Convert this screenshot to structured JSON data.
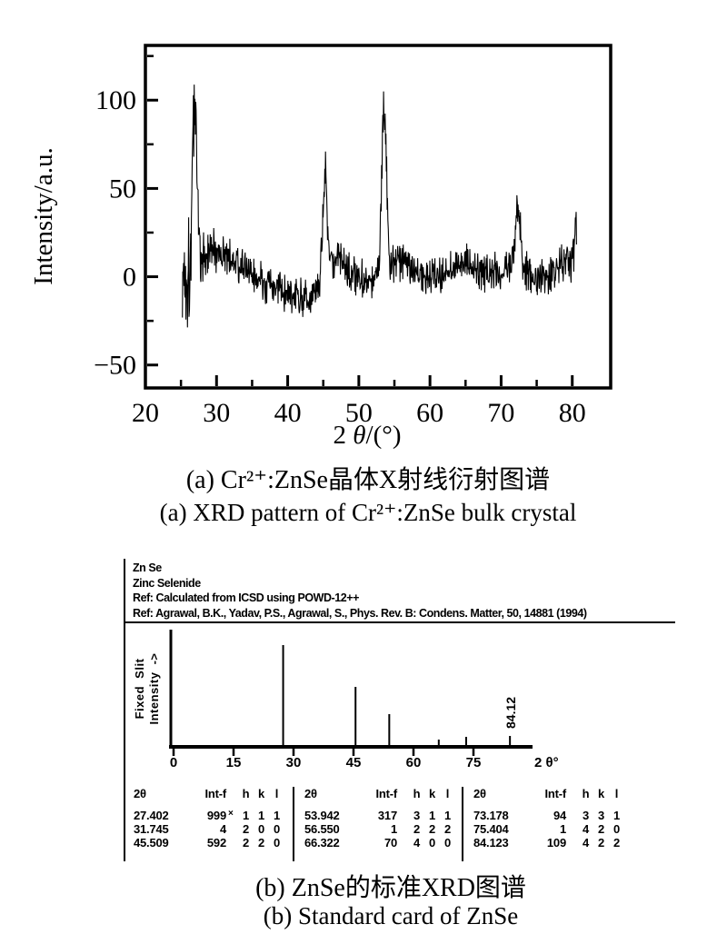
{
  "figure": {
    "captions": {
      "a_zh": "(a) Cr²⁺:ZnSe晶体X射线衍射图谱",
      "a_en": "(a) XRD pattern of Cr²⁺:ZnSe bulk crystal",
      "b_zh": "(b) ZnSe的标准XRD图谱",
      "b_en": "(b) Standard card of ZnSe"
    }
  },
  "chart_data": [
    {
      "id": "xrd-pattern-a",
      "type": "line",
      "title": "",
      "xlabel": "2θ/(°)",
      "ylabel": "Intensity/a.u.",
      "xlim": [
        20,
        85.4
      ],
      "ylim": [
        -63,
        131
      ],
      "xticks": [
        20,
        30,
        40,
        50,
        60,
        70,
        80
      ],
      "xticks_minor": [
        25,
        35,
        45,
        55,
        65,
        75
      ],
      "yticks": [
        -50,
        0,
        50,
        100
      ],
      "yticks_minor": [
        -25,
        25,
        75,
        125
      ],
      "grid": false,
      "x_data_range": [
        25.2,
        80.6
      ],
      "seed": 1337,
      "noise": {
        "base": 13,
        "start_boost": 24,
        "start_center": 25.4,
        "start_width": 2.0
      },
      "peaks": [
        {
          "center": 26.95,
          "height": 102,
          "width": 0.32
        },
        {
          "center": 45.25,
          "height": 62,
          "width": 0.3
        },
        {
          "center": 53.55,
          "height": 108,
          "width": 0.32
        },
        {
          "center": 72.35,
          "height": 42,
          "width": 0.28
        },
        {
          "center": 80.5,
          "height": 28,
          "width": 0.18
        }
      ],
      "humps": [
        {
          "center": 29.5,
          "height": 14,
          "width": 2.2
        },
        {
          "center": 33.0,
          "height": 8,
          "width": 3.0
        },
        {
          "center": 36.0,
          "height": -6,
          "width": 8.0
        },
        {
          "center": 41.5,
          "height": -7,
          "width": 2.5
        },
        {
          "center": 46.8,
          "height": 12,
          "width": 1.6
        },
        {
          "center": 55.8,
          "height": 9,
          "width": 1.8
        },
        {
          "center": 64.5,
          "height": 7,
          "width": 2.0
        },
        {
          "center": 71.5,
          "height": 8,
          "width": 1.5
        },
        {
          "center": 79.3,
          "height": 9,
          "width": 1.2
        }
      ]
    },
    {
      "id": "standard-card-sticks-b",
      "type": "stick",
      "xlabel": "2 θ°",
      "ylabel_lines": [
        "Fixed  Slit",
        "Intensity  ->"
      ],
      "xlim": [
        0,
        90
      ],
      "xticks": [
        0,
        15,
        30,
        45,
        60,
        75
      ],
      "max_intensity": 999,
      "sticks": [
        {
          "two_theta": 27.402,
          "intensity": 999
        },
        {
          "two_theta": 31.745,
          "intensity": 4
        },
        {
          "two_theta": 45.509,
          "intensity": 592
        },
        {
          "two_theta": 53.942,
          "intensity": 317
        },
        {
          "two_theta": 56.55,
          "intensity": 1
        },
        {
          "two_theta": 66.322,
          "intensity": 70
        },
        {
          "two_theta": 73.178,
          "intensity": 94
        },
        {
          "two_theta": 75.404,
          "intensity": 1
        },
        {
          "two_theta": 84.123,
          "intensity": 109
        }
      ],
      "annotation": {
        "text": "84.12",
        "two_theta": 84.123
      }
    }
  ],
  "card": {
    "header_lines": [
      "Zn Se",
      "Zinc Selenide",
      "Ref:  Calculated from ICSD using POWD-12++",
      "Ref: Agrawal, B.K., Yadav, P.S., Agrawal, S., Phys. Rev. B: Condens. Matter, 50, 14881 (1994)"
    ],
    "table": {
      "headers": [
        "2θ",
        "Int-f",
        "h",
        "k",
        "l"
      ],
      "groups": [
        {
          "rows": [
            {
              "two_theta": "27.402",
              "int_f": "999",
              "marker": "×",
              "h": "1",
              "k": "1",
              "l": "1"
            },
            {
              "two_theta": "31.745",
              "int_f": "4",
              "marker": "",
              "h": "2",
              "k": "0",
              "l": "0"
            },
            {
              "two_theta": "45.509",
              "int_f": "592",
              "marker": "",
              "h": "2",
              "k": "2",
              "l": "0"
            }
          ]
        },
        {
          "rows": [
            {
              "two_theta": "53.942",
              "int_f": "317",
              "marker": "",
              "h": "3",
              "k": "1",
              "l": "1"
            },
            {
              "two_theta": "56.550",
              "int_f": "1",
              "marker": "",
              "h": "2",
              "k": "2",
              "l": "2"
            },
            {
              "two_theta": "66.322",
              "int_f": "70",
              "marker": "",
              "h": "4",
              "k": "0",
              "l": "0"
            }
          ]
        },
        {
          "rows": [
            {
              "two_theta": "73.178",
              "int_f": "94",
              "marker": "",
              "h": "3",
              "k": "3",
              "l": "1"
            },
            {
              "two_theta": "75.404",
              "int_f": "1",
              "marker": "",
              "h": "4",
              "k": "2",
              "l": "0"
            },
            {
              "two_theta": "84.123",
              "int_f": "109",
              "marker": "",
              "h": "4",
              "k": "2",
              "l": "2"
            }
          ]
        }
      ]
    }
  }
}
